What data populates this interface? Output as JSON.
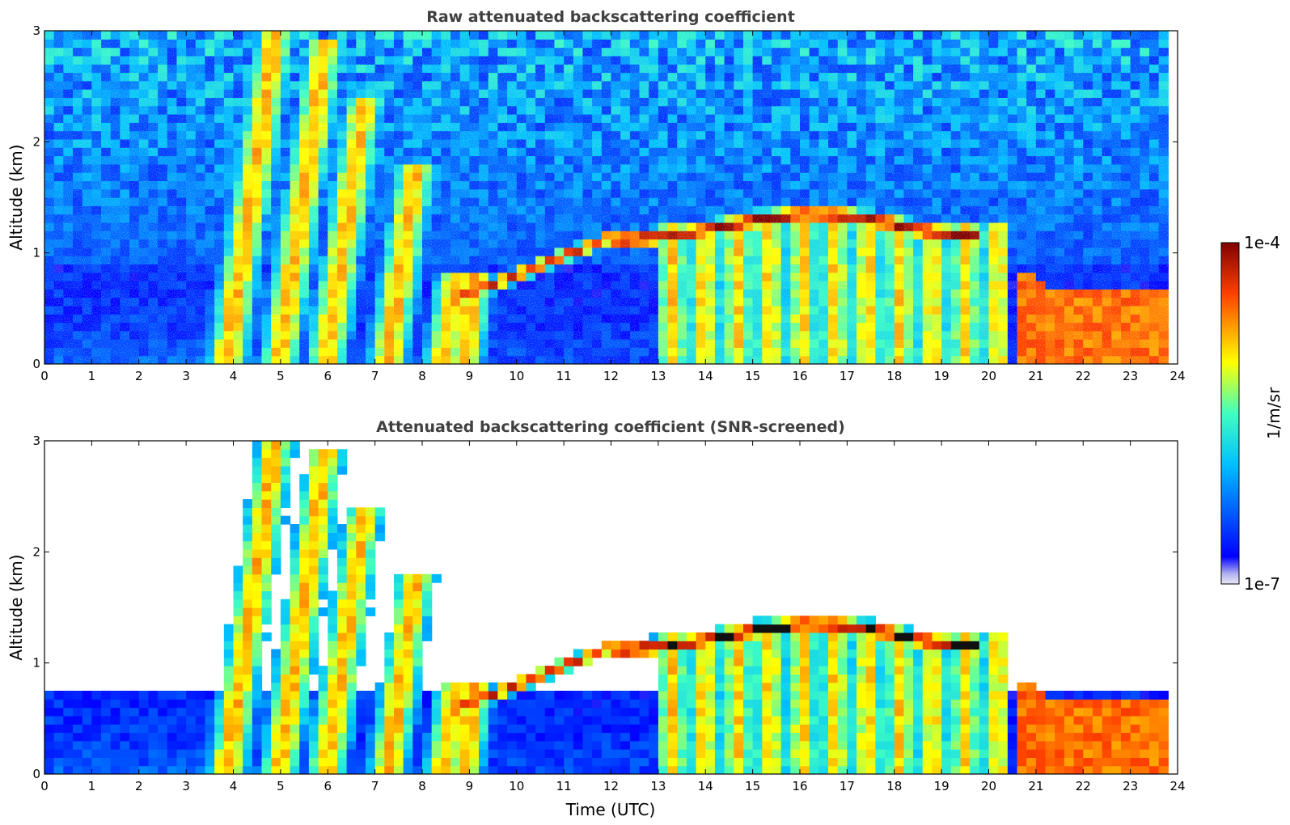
{
  "figure": {
    "xlabel": "Time (UTC)",
    "colorbar": {
      "label": "1/m/sr",
      "max_label": "1e-4",
      "min_label": "1e-7",
      "scale": "log",
      "range": [
        1e-07,
        0.0001
      ]
    }
  },
  "chart_data": [
    {
      "type": "heatmap",
      "title": "Raw attenuated backscattering coefficient",
      "xlabel": "",
      "ylabel": "Altitude (km)",
      "xlim": [
        0,
        24
      ],
      "ylim": [
        0,
        3
      ],
      "xticks": [
        "0",
        "1",
        "2",
        "3",
        "4",
        "5",
        "6",
        "7",
        "8",
        "9",
        "10",
        "11",
        "12",
        "13",
        "14",
        "15",
        "16",
        "17",
        "18",
        "19",
        "20",
        "21",
        "22",
        "23",
        "24"
      ],
      "yticks": [
        "0",
        "1",
        "2",
        "3"
      ],
      "grid": false,
      "colormap": "jet",
      "screened": false
    },
    {
      "type": "heatmap",
      "title": "Attenuated backscattering coefficient (SNR-screened)",
      "xlabel": "Time (UTC)",
      "ylabel": "Altitude (km)",
      "xlim": [
        0,
        24
      ],
      "ylim": [
        0,
        3
      ],
      "xticks": [
        "0",
        "1",
        "2",
        "3",
        "4",
        "5",
        "6",
        "7",
        "8",
        "9",
        "10",
        "11",
        "12",
        "13",
        "14",
        "15",
        "16",
        "17",
        "18",
        "19",
        "20",
        "21",
        "22",
        "23",
        "24"
      ],
      "yticks": [
        "0",
        "1",
        "2",
        "3"
      ],
      "grid": false,
      "colormap": "jet",
      "screened": true
    }
  ]
}
